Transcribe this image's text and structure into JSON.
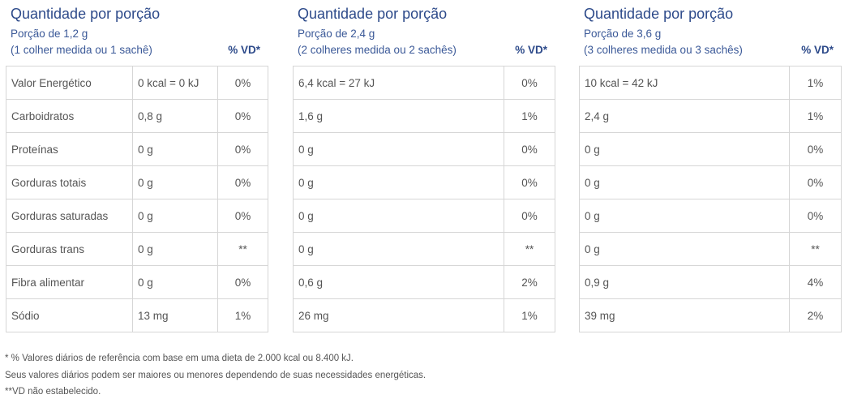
{
  "header": {
    "title": "Quantidade por porção",
    "vd_header": "% VD*"
  },
  "panels": [
    {
      "portion": "Porção de 1,2 g",
      "description": "(1 colher medida ou 1 sachê)",
      "rows": [
        {
          "nutrient": "Valor Energético",
          "amount": "0 kcal = 0 kJ",
          "vd": "0%"
        },
        {
          "nutrient": "Carboidratos",
          "amount": "0,8 g",
          "vd": "0%"
        },
        {
          "nutrient": "Proteínas",
          "amount": "0 g",
          "vd": "0%"
        },
        {
          "nutrient": "Gorduras totais",
          "amount": "0 g",
          "vd": "0%"
        },
        {
          "nutrient": "Gorduras saturadas",
          "amount": "0 g",
          "vd": "0%"
        },
        {
          "nutrient": "Gorduras trans",
          "amount": "0 g",
          "vd": "**"
        },
        {
          "nutrient": "Fibra alimentar",
          "amount": "0 g",
          "vd": "0%"
        },
        {
          "nutrient": "Sódio",
          "amount": "13 mg",
          "vd": "1%"
        }
      ]
    },
    {
      "portion": "Porção de 2,4 g",
      "description": "(2 colheres medida ou 2 sachês)",
      "rows": [
        {
          "nutrient": "",
          "amount": "6,4 kcal = 27 kJ",
          "vd": "0%"
        },
        {
          "nutrient": "",
          "amount": "1,6 g",
          "vd": "1%"
        },
        {
          "nutrient": "",
          "amount": "0 g",
          "vd": "0%"
        },
        {
          "nutrient": "",
          "amount": "0 g",
          "vd": "0%"
        },
        {
          "nutrient": "",
          "amount": "0 g",
          "vd": "0%"
        },
        {
          "nutrient": "",
          "amount": "0 g",
          "vd": "**"
        },
        {
          "nutrient": "",
          "amount": "0,6 g",
          "vd": "2%"
        },
        {
          "nutrient": "",
          "amount": "26 mg",
          "vd": "1%"
        }
      ]
    },
    {
      "portion": "Porção de 3,6 g",
      "description": "(3 colheres medida ou 3 sachês)",
      "rows": [
        {
          "nutrient": "",
          "amount": "10 kcal = 42 kJ",
          "vd": "1%"
        },
        {
          "nutrient": "",
          "amount": "2,4 g",
          "vd": "1%"
        },
        {
          "nutrient": "",
          "amount": "0 g",
          "vd": "0%"
        },
        {
          "nutrient": "",
          "amount": "0 g",
          "vd": "0%"
        },
        {
          "nutrient": "",
          "amount": "0 g",
          "vd": "0%"
        },
        {
          "nutrient": "",
          "amount": "0 g",
          "vd": "**"
        },
        {
          "nutrient": "",
          "amount": "0,9 g",
          "vd": "4%"
        },
        {
          "nutrient": "",
          "amount": "39 mg",
          "vd": "2%"
        }
      ]
    }
  ],
  "footnotes": [
    "* % Valores diários de referência com base em uma dieta de 2.000 kcal ou 8.400 kJ.",
    "Seus valores diários podem ser maiores ou menores dependendo de suas necessidades energéticas.",
    "**VD não estabelecido."
  ],
  "colors": {
    "title": "#2d4a8a",
    "subtitle": "#3b5998",
    "text": "#555555",
    "border": "#d6d6d6"
  }
}
